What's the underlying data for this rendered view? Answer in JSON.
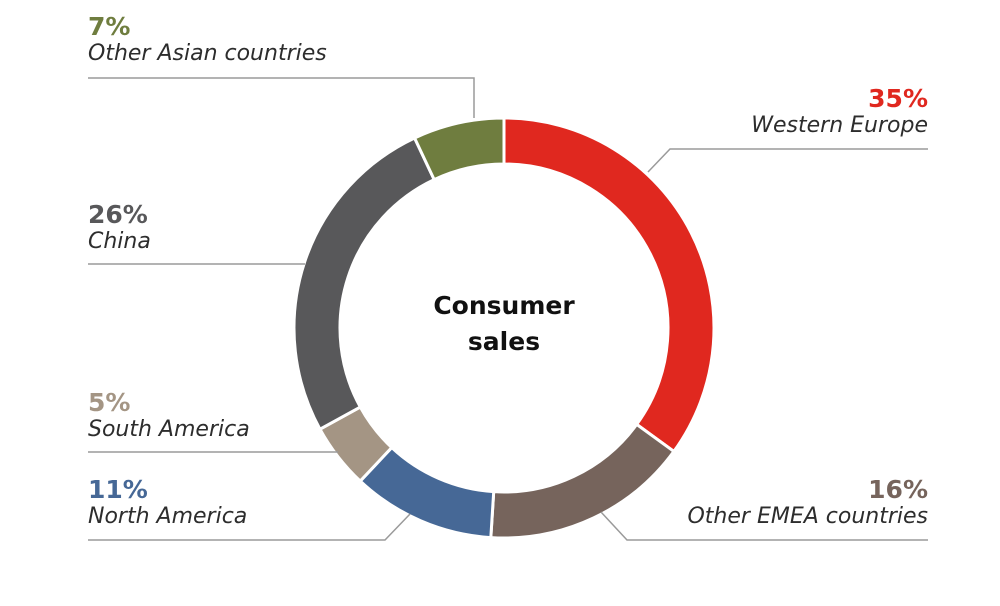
{
  "chart_data": {
    "type": "pie",
    "variant": "donut",
    "title": "Consumer sales",
    "center_label_lines": [
      "Consumer",
      "sales"
    ],
    "start_angle": "12 o'clock, clockwise",
    "categories": [
      "Western Europe",
      "Other EMEA countries",
      "North America",
      "South America",
      "China",
      "Other Asian countries"
    ],
    "values": [
      35,
      16,
      11,
      5,
      26,
      7
    ],
    "unit": "%",
    "colors": [
      "#e0281f",
      "#76645c",
      "#466896",
      "#a49584",
      "#58585a",
      "#6f7d3f"
    ]
  },
  "labels": [
    {
      "pct": "35%",
      "name": "Western Europe",
      "color": "#e0281f"
    },
    {
      "pct": "16%",
      "name": "Other EMEA countries",
      "color": "#76645c"
    },
    {
      "pct": "11%",
      "name": "North America",
      "color": "#466896"
    },
    {
      "pct": "5%",
      "name": "South America",
      "color": "#a49584"
    },
    {
      "pct": "26%",
      "name": "China",
      "color": "#58585a"
    },
    {
      "pct": "7%",
      "name": "Other Asian countries",
      "color": "#6f7d3f"
    }
  ],
  "center": {
    "line1": "Consumer",
    "line2": "sales"
  }
}
